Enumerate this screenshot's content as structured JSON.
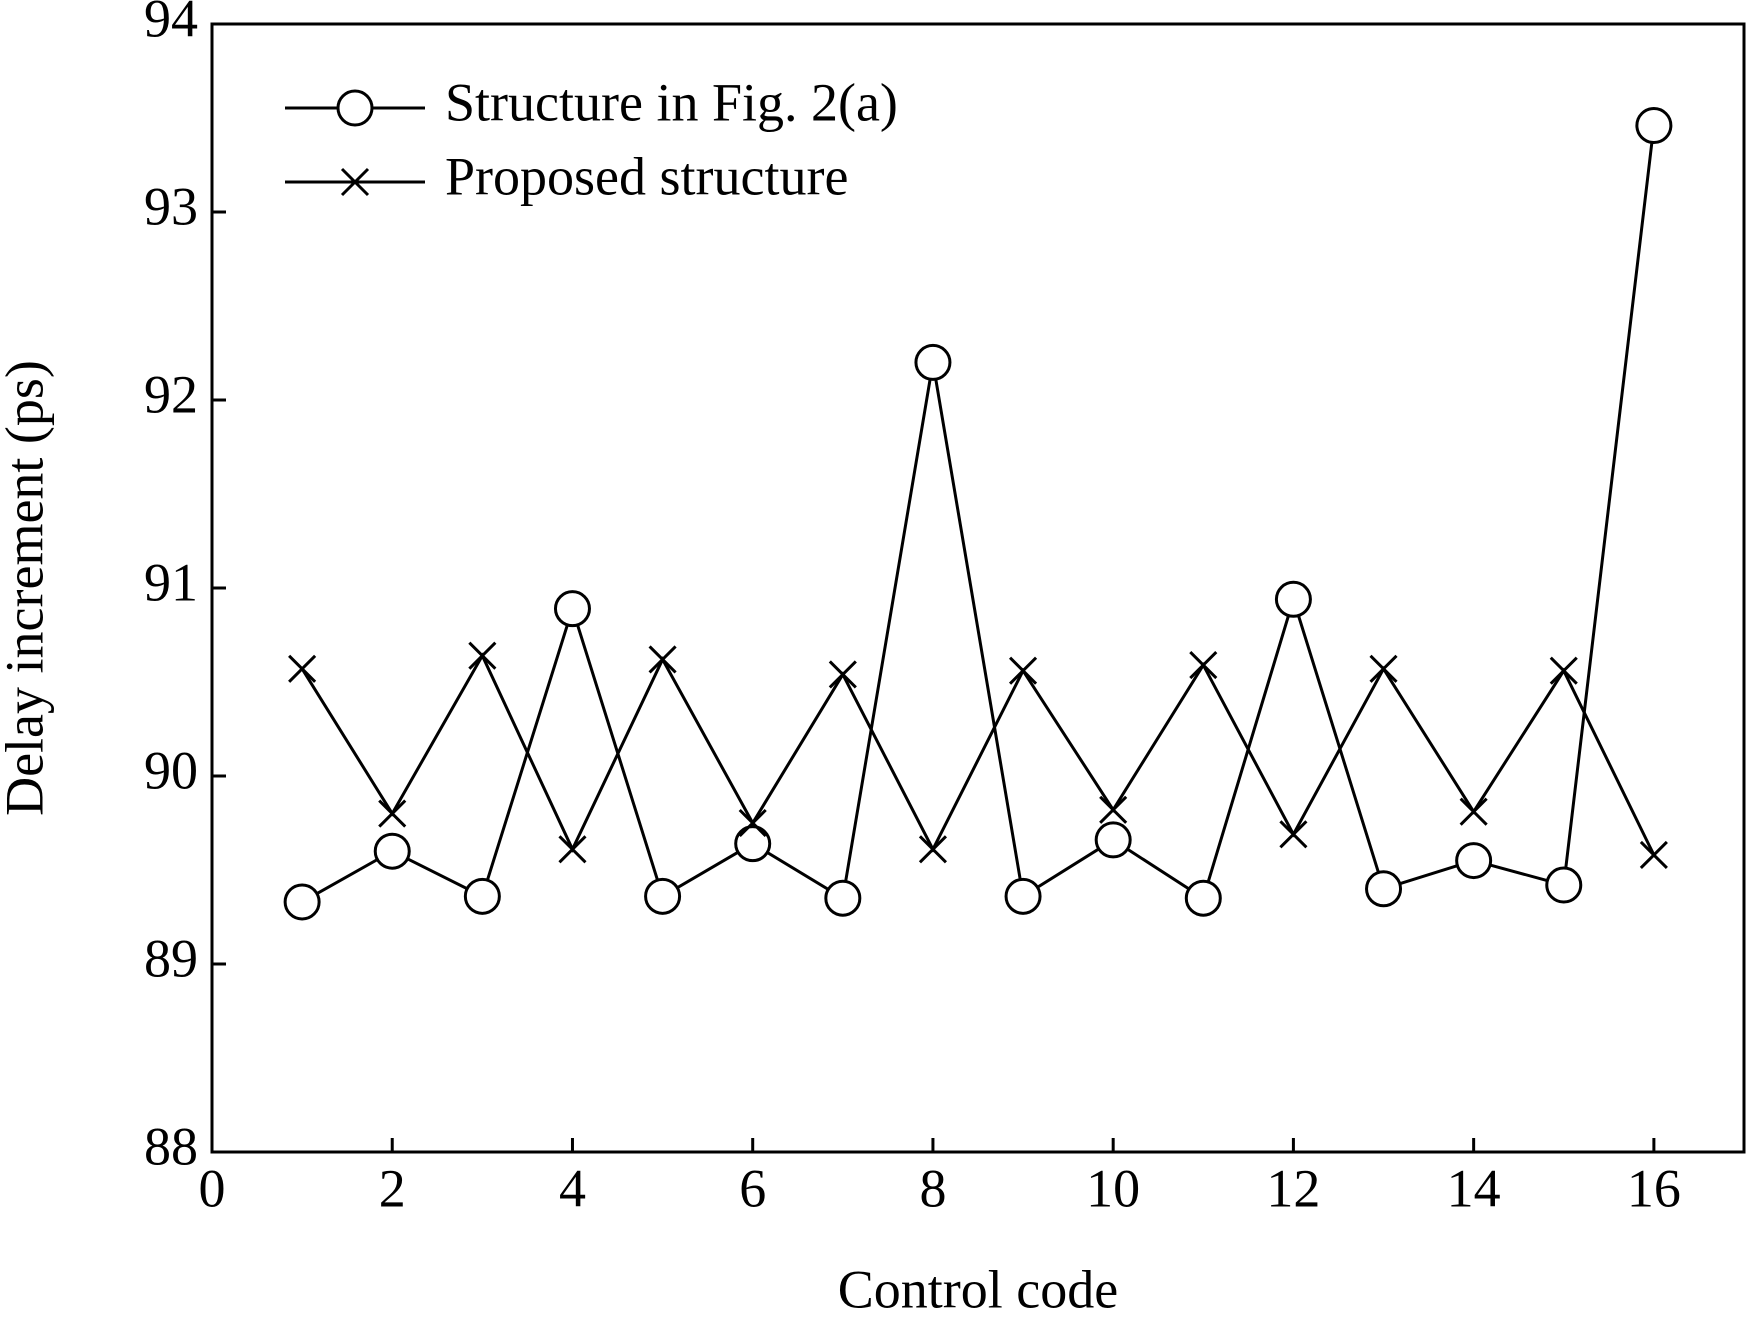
{
  "chart_data": {
    "type": "line",
    "xlabel": "Control code",
    "ylabel": "Delay increment (ps)",
    "x": [
      1,
      2,
      3,
      4,
      5,
      6,
      7,
      8,
      9,
      10,
      11,
      12,
      13,
      14,
      15,
      16
    ],
    "series": [
      {
        "name": "Structure in Fig. 2(a)",
        "color": "#000000",
        "marker": "circle",
        "values": [
          89.33,
          89.6,
          89.36,
          90.89,
          89.36,
          89.64,
          89.35,
          92.2,
          89.36,
          89.66,
          89.35,
          90.94,
          89.4,
          89.55,
          89.42,
          93.46
        ]
      },
      {
        "name": "Proposed structure",
        "color": "#000000",
        "marker": "x",
        "values": [
          90.57,
          89.8,
          90.64,
          89.61,
          90.62,
          89.75,
          90.54,
          89.61,
          90.56,
          89.82,
          90.59,
          89.69,
          90.57,
          89.81,
          90.56,
          89.58
        ]
      }
    ],
    "xlim": [
      0,
      17
    ],
    "xticks": [
      0,
      2,
      4,
      6,
      8,
      10,
      12,
      14,
      16
    ],
    "ylim": [
      88,
      94
    ],
    "yticks": [
      88,
      89,
      90,
      91,
      92,
      93,
      94
    ],
    "grid": false,
    "legend": "upper left"
  }
}
